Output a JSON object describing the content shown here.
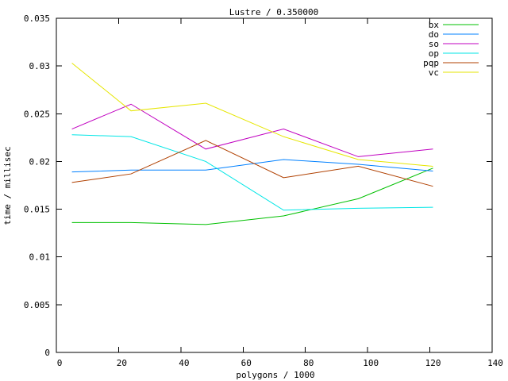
{
  "window_title": "Lustre / 0.350000",
  "chart_data": {
    "type": "line",
    "title": "Lustre / 0.350000",
    "xlabel": "polygons / 1000",
    "ylabel": "time / millisec",
    "xlim": [
      0,
      140
    ],
    "ylim": [
      0,
      0.035
    ],
    "grid": false,
    "legend_position": "top-right-inside",
    "xticks": [
      0,
      20,
      40,
      60,
      80,
      100,
      120,
      140
    ],
    "xtick_labels": [
      "0",
      "20",
      "40",
      "60",
      "80",
      "100",
      "120",
      "140"
    ],
    "yticks": [
      0,
      0.005,
      0.01,
      0.015,
      0.02,
      0.025,
      0.03,
      0.035
    ],
    "ytick_labels": [
      "0",
      "0.005",
      "0.01",
      "0.015",
      "0.02",
      "0.025",
      "0.03",
      "0.035"
    ],
    "x": [
      5,
      24,
      48,
      73,
      97,
      121
    ],
    "series": [
      {
        "name": "bx",
        "color": "#00c000",
        "values": [
          0.0136,
          0.0136,
          0.0134,
          0.0143,
          0.0161,
          0.0193
        ]
      },
      {
        "name": "do",
        "color": "#0080ff",
        "values": [
          0.0189,
          0.0191,
          0.0191,
          0.0202,
          0.0197,
          0.019
        ]
      },
      {
        "name": "so",
        "color": "#c000c0",
        "values": [
          0.0234,
          0.026,
          0.0213,
          0.0234,
          0.0205,
          0.0213
        ]
      },
      {
        "name": "op",
        "color": "#00e6e6",
        "values": [
          0.0228,
          0.0226,
          0.02,
          0.0149,
          0.0151,
          0.0152
        ]
      },
      {
        "name": "pqp",
        "color": "#b04000",
        "values": [
          0.0178,
          0.0187,
          0.0222,
          0.0183,
          0.0195,
          0.0174
        ]
      },
      {
        "name": "vc",
        "color": "#e6e600",
        "values": [
          0.0303,
          0.0253,
          0.0261,
          0.0226,
          0.0202,
          0.0195
        ]
      }
    ],
    "axis_color": "#000000"
  }
}
